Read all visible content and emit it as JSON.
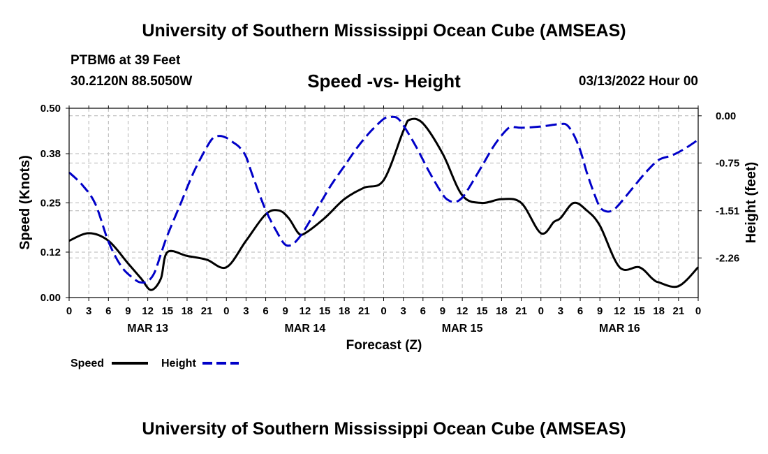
{
  "header": {
    "title": "University of Southern Mississippi Ocean Cube (AMSEAS)",
    "station": "PTBM6 at 39 Feet",
    "coordinates": "30.2120N  88.5050W",
    "datetime": "03/13/2022 Hour 00"
  },
  "footer": {
    "title": "University of Southern Mississippi Ocean Cube (AMSEAS)"
  },
  "colors": {
    "speed": "#000000",
    "height": "#0000c8",
    "grid": "#b4b4b4"
  },
  "chart_data": {
    "type": "line",
    "title": "Speed -vs- Height",
    "xlabel": "Forecast (Z)",
    "ylabel_left": "Speed (Knots)",
    "ylabel_right": "Height (feet)",
    "x_range_hours": [
      0,
      96
    ],
    "x_tick_step_hours": 3,
    "x_tick_labels": [
      "0",
      "3",
      "6",
      "9",
      "12",
      "15",
      "18",
      "21",
      "0",
      "3",
      "6",
      "9",
      "12",
      "15",
      "18",
      "21",
      "0",
      "3",
      "6",
      "9",
      "12",
      "15",
      "18",
      "21",
      "0",
      "3",
      "6",
      "9",
      "12",
      "15",
      "18",
      "21",
      "0"
    ],
    "date_labels": [
      {
        "hour": 12,
        "label": "MAR 13"
      },
      {
        "hour": 36,
        "label": "MAR 14"
      },
      {
        "hour": 60,
        "label": "MAR 15"
      },
      {
        "hour": 84,
        "label": "MAR 16"
      }
    ],
    "y_left": {
      "min": 0,
      "max": 0.5,
      "ticks": [
        0.0,
        0.12,
        0.25,
        0.38,
        0.5
      ],
      "tick_labels": [
        "0.00",
        "0.12",
        "0.25",
        "0.38",
        "0.50"
      ]
    },
    "y_right": {
      "min": -2.89,
      "max": 0.12,
      "ticks": [
        0.0,
        -0.75,
        -1.51,
        -2.26
      ],
      "tick_labels": [
        "0.00",
        "-0.75",
        "-1.51",
        "-2.26"
      ]
    },
    "legend": {
      "position": "bottom-left",
      "entries": [
        "Speed",
        "Height"
      ]
    },
    "series": [
      {
        "name": "Speed",
        "axis": "left",
        "style": "solid",
        "x": [
          0,
          3,
          6,
          9,
          11,
          12.5,
          14,
          15,
          18,
          21,
          24,
          27,
          30,
          32,
          33.5,
          35,
          36,
          39,
          42,
          45,
          48,
          51,
          52,
          54,
          57,
          60,
          63,
          66,
          69,
          72,
          74,
          75,
          77,
          79,
          81,
          84,
          87,
          89,
          90,
          93,
          96
        ],
        "y": [
          0.15,
          0.17,
          0.15,
          0.09,
          0.05,
          0.02,
          0.05,
          0.12,
          0.11,
          0.1,
          0.08,
          0.15,
          0.22,
          0.23,
          0.21,
          0.17,
          0.17,
          0.21,
          0.26,
          0.29,
          0.31,
          0.44,
          0.47,
          0.46,
          0.38,
          0.27,
          0.25,
          0.26,
          0.25,
          0.17,
          0.2,
          0.21,
          0.25,
          0.23,
          0.19,
          0.08,
          0.08,
          0.05,
          0.04,
          0.03,
          0.08
        ]
      },
      {
        "name": "Height",
        "axis": "right",
        "style": "dashed",
        "x": [
          0,
          2,
          4,
          6,
          8,
          10,
          11,
          12,
          13,
          14,
          15,
          17,
          19,
          21,
          22,
          23,
          24,
          25,
          26,
          27,
          28,
          30,
          32,
          33,
          34,
          35,
          36,
          38,
          40,
          42,
          44,
          46,
          48,
          49,
          50,
          51,
          53,
          55,
          57,
          58,
          59,
          60,
          61,
          63,
          65,
          67,
          68,
          69,
          72,
          75,
          76,
          77,
          78,
          79,
          80,
          81,
          82,
          83,
          84,
          86,
          88,
          90,
          92,
          94,
          96
        ],
        "y": [
          -0.9,
          -1.1,
          -1.4,
          -2.0,
          -2.4,
          -2.6,
          -2.65,
          -2.63,
          -2.5,
          -2.2,
          -1.9,
          -1.4,
          -0.9,
          -0.5,
          -0.35,
          -0.32,
          -0.35,
          -0.42,
          -0.5,
          -0.65,
          -0.95,
          -1.5,
          -1.9,
          -2.05,
          -2.05,
          -1.95,
          -1.8,
          -1.45,
          -1.1,
          -0.8,
          -0.5,
          -0.25,
          -0.05,
          -0.02,
          -0.03,
          -0.15,
          -0.5,
          -0.9,
          -1.25,
          -1.35,
          -1.37,
          -1.3,
          -1.15,
          -0.8,
          -0.45,
          -0.2,
          -0.18,
          -0.19,
          -0.17,
          -0.13,
          -0.15,
          -0.3,
          -0.55,
          -0.9,
          -1.2,
          -1.45,
          -1.52,
          -1.5,
          -1.4,
          -1.15,
          -0.9,
          -0.7,
          -0.63,
          -0.52,
          -0.38
        ]
      }
    ]
  }
}
